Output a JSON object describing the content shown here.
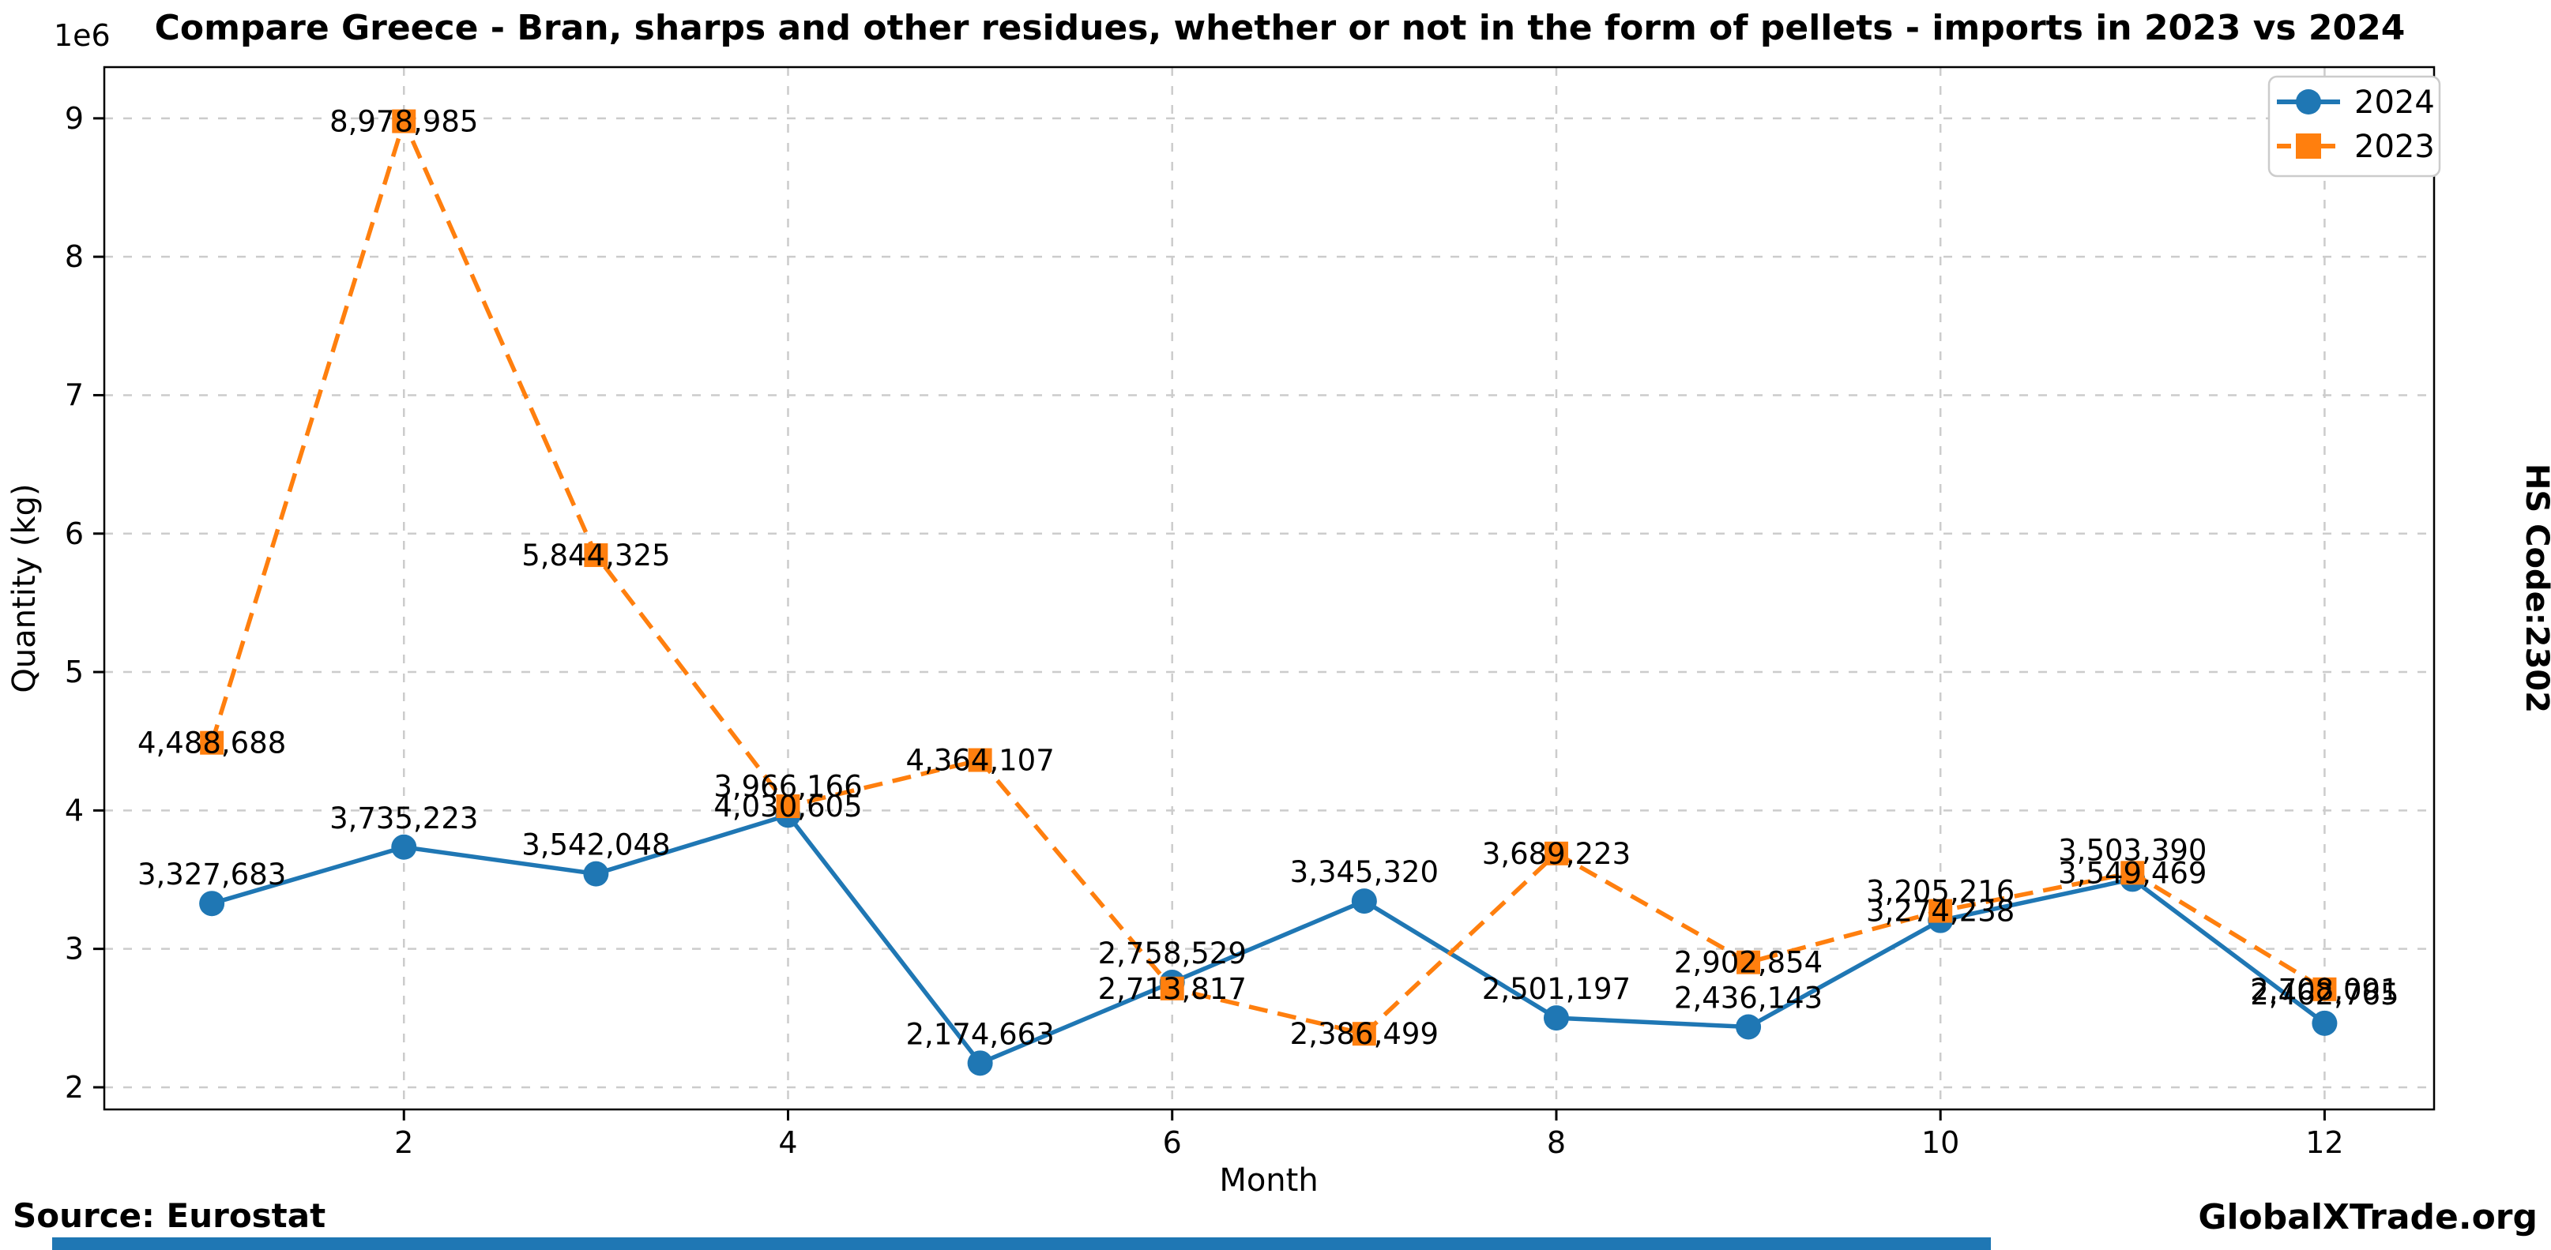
{
  "side_label": "HS Code:2302",
  "footer": {
    "source": "Source: Eurostat",
    "brand": "GlobalXTrade.org"
  },
  "colors": {
    "accent_bar": "#1f77b4",
    "grid": "#cccccc",
    "legend_border": "#cccccc",
    "series_2024": "#1f77b4",
    "series_2023": "#ff7f0e"
  },
  "chart_data": {
    "type": "line",
    "title": "Compare Greece - Bran, sharps and other residues, whether or not in the form of pellets - imports in 2023 vs 2024",
    "xlabel": "Month",
    "ylabel": "Quantity (kg)",
    "offset_text": "1e6",
    "grid": true,
    "legend_position": "upper right",
    "x": [
      1,
      2,
      3,
      4,
      5,
      6,
      7,
      8,
      9,
      10,
      11,
      12
    ],
    "xticks": [
      2,
      4,
      6,
      8,
      10,
      12
    ],
    "yticks_millions": [
      2,
      3,
      4,
      5,
      6,
      7,
      8,
      9
    ],
    "xlim": [
      0.44,
      12.57
    ],
    "ylim": [
      1840000,
      9370000
    ],
    "series": [
      {
        "name": "2024",
        "color": "#1f77b4",
        "marker": "circle",
        "line": "solid",
        "label_placement": "above",
        "values": [
          3327683,
          3735223,
          3542048,
          3966166,
          2174663,
          2758529,
          3345320,
          2501197,
          2436143,
          3205216,
          3503390,
          2462765
        ]
      },
      {
        "name": "2023",
        "color": "#ff7f0e",
        "marker": "square",
        "line": "dashed",
        "label_placement": "center",
        "values": [
          4488688,
          8978985,
          5844325,
          4030605,
          4364107,
          2713817,
          2386499,
          3689223,
          2902854,
          3274238,
          3549469,
          2708091
        ]
      }
    ]
  }
}
